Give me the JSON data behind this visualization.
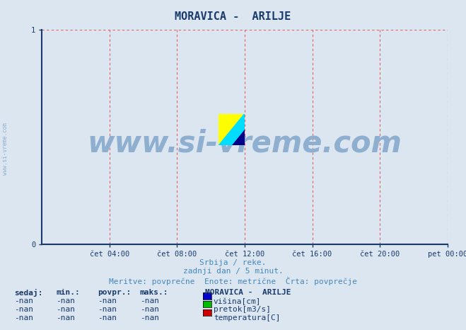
{
  "title": "MORAVICA -  ARILJE",
  "title_color": "#1a3a6b",
  "bg_color": "#dce6f0",
  "plot_bg_color": "#dce6f0",
  "grid_color": "#e06060",
  "axis_color": "#1a3a6b",
  "xlim": [
    0,
    288
  ],
  "ylim": [
    0,
    1
  ],
  "yticks": [
    0,
    1
  ],
  "xtick_labels": [
    "čet 04:00",
    "čet 08:00",
    "čet 12:00",
    "čet 16:00",
    "čet 20:00",
    "pet 00:00"
  ],
  "xtick_positions": [
    48,
    96,
    144,
    192,
    240,
    288
  ],
  "watermark_text": "www.si-vreme.com",
  "watermark_color": "#8fafd0",
  "subtitle1": "Srbija / reke.",
  "subtitle2": "zadnji dan / 5 minut.",
  "subtitle3": "Meritve: povprečne  Enote: metrične  Črta: povprečje",
  "subtitle_color": "#4488bb",
  "table_header": [
    "sedaj:",
    "min.:",
    "povpr.:",
    "maks.:"
  ],
  "table_values": [
    "-nan",
    "-nan",
    "-nan",
    "-nan"
  ],
  "legend_title": "MORAVICA -  ARILJE",
  "legend_items": [
    {
      "label": "višina[cm]",
      "color": "#0000cc"
    },
    {
      "label": "pretok[m3/s]",
      "color": "#00bb00"
    },
    {
      "label": "temperatura[C]",
      "color": "#cc0000"
    }
  ],
  "table_color": "#1a3a6b",
  "logo_yellow": "#ffff00",
  "logo_cyan": "#00ddff",
  "logo_darkblue": "#000088",
  "left_watermark_color": "#8fafd0",
  "arrow_color": "#cc2222"
}
